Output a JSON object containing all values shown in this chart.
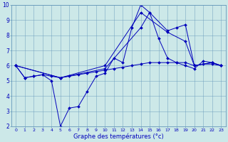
{
  "title": "Graphe des températures (°c)",
  "bg_color": "#cce8e8",
  "grid_color": "#6699bb",
  "line_color": "#0000bb",
  "xlim": [
    -0.5,
    23.5
  ],
  "ylim": [
    2,
    10
  ],
  "xticks": [
    0,
    1,
    2,
    3,
    4,
    5,
    6,
    7,
    8,
    9,
    10,
    11,
    12,
    13,
    14,
    15,
    16,
    17,
    18,
    19,
    20,
    21,
    22,
    23
  ],
  "yticks": [
    2,
    3,
    4,
    5,
    6,
    7,
    8,
    9,
    10
  ],
  "series": [
    {
      "x": [
        0,
        1,
        2,
        3,
        4,
        5,
        6,
        7,
        8,
        9,
        10,
        11,
        12,
        13,
        14,
        15,
        16,
        17,
        18,
        19,
        20,
        21,
        22,
        23
      ],
      "y": [
        6.0,
        5.2,
        5.3,
        5.4,
        5.0,
        2.0,
        3.2,
        3.3,
        4.3,
        5.3,
        5.5,
        6.5,
        6.2,
        8.5,
        10.0,
        9.5,
        7.8,
        6.5,
        6.2,
        6.0,
        5.8,
        6.3,
        6.2,
        6.0
      ]
    },
    {
      "x": [
        0,
        1,
        2,
        3,
        4,
        5,
        6,
        7,
        8,
        9,
        10,
        11,
        12,
        13,
        14,
        15,
        16,
        17,
        18,
        19,
        20,
        21,
        22,
        23
      ],
      "y": [
        6.0,
        5.2,
        5.3,
        5.4,
        5.3,
        5.2,
        5.3,
        5.4,
        5.5,
        5.6,
        5.7,
        5.8,
        5.9,
        6.0,
        6.1,
        6.2,
        6.2,
        6.2,
        6.2,
        6.2,
        6.0,
        6.1,
        6.1,
        6.0
      ]
    },
    {
      "x": [
        0,
        5,
        10,
        14,
        17,
        19,
        20,
        22,
        23
      ],
      "y": [
        6.0,
        5.2,
        6.0,
        9.5,
        8.2,
        7.6,
        6.0,
        6.2,
        6.0
      ]
    },
    {
      "x": [
        0,
        5,
        10,
        14,
        15,
        17,
        18,
        19,
        20,
        22,
        23
      ],
      "y": [
        6.0,
        5.2,
        5.8,
        8.5,
        9.5,
        8.3,
        8.5,
        8.7,
        6.0,
        6.2,
        6.0
      ]
    }
  ]
}
